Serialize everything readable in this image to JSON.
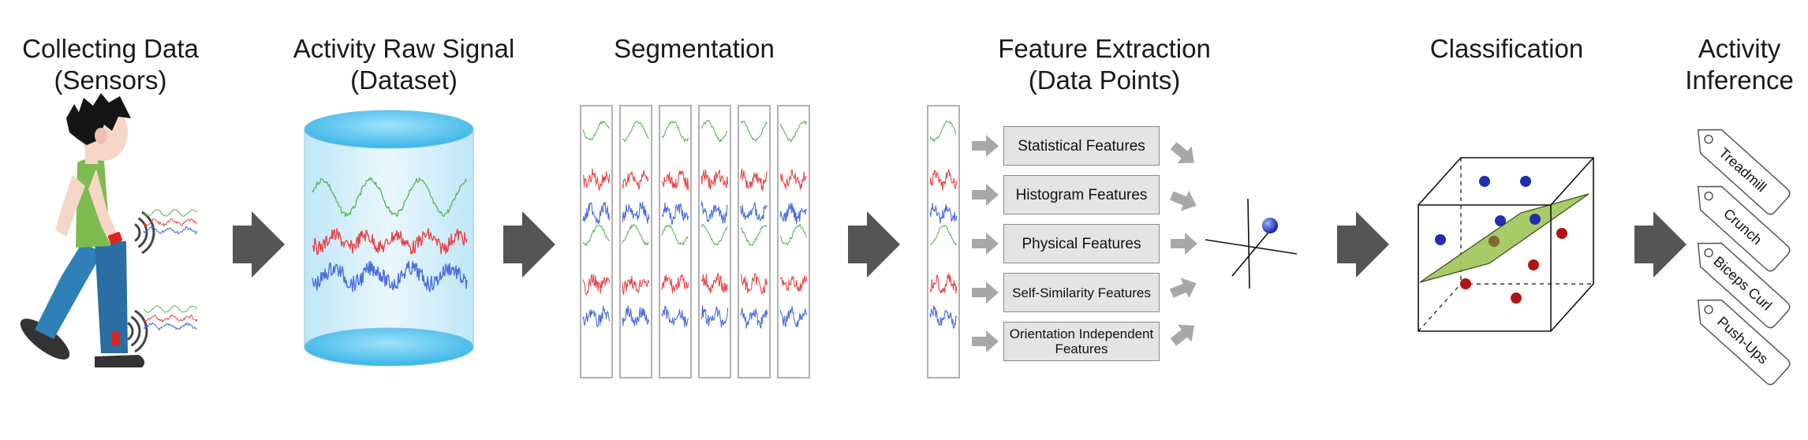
{
  "stages": [
    {
      "id": "collecting",
      "lines": [
        "Collecting Data",
        "(Sensors)"
      ]
    },
    {
      "id": "raw-signal",
      "lines": [
        "Activity Raw Signal",
        "(Dataset)"
      ]
    },
    {
      "id": "segmentation",
      "lines": [
        "Segmentation"
      ]
    },
    {
      "id": "feature-extraction",
      "lines": [
        "Feature Extraction",
        "(Data Points)"
      ]
    },
    {
      "id": "classification",
      "lines": [
        "Classification"
      ]
    },
    {
      "id": "inference",
      "lines": [
        "Activity",
        "Inference"
      ]
    }
  ],
  "features": [
    {
      "lines": [
        "Statistical Features"
      ]
    },
    {
      "lines": [
        "Histogram Features"
      ]
    },
    {
      "lines": [
        "Physical Features"
      ]
    },
    {
      "lines": [
        "Self-Similarity Features"
      ]
    },
    {
      "lines": [
        "Orientation Independent",
        "Features"
      ]
    }
  ],
  "activity_tags": [
    "Treadmill",
    "Crunch",
    "Biceps Curl",
    "Push-Ups"
  ],
  "colors": {
    "accel_x": "#5cb85c",
    "accel_y": "#e8474a",
    "accel_z": "#4a6ee0",
    "flow_arrow": "#555555",
    "small_arrow": "#a8a8a8",
    "cylinder_top": "#4fc3f0",
    "plane": "#9dc452",
    "class_blue": "#1f2fb0",
    "class_red": "#b01515",
    "shirt": "#7dbb4f",
    "pants": "#2f7fb8",
    "hair": "#151515",
    "skin": "#f6d6c7",
    "sensor": "#dd2222"
  }
}
